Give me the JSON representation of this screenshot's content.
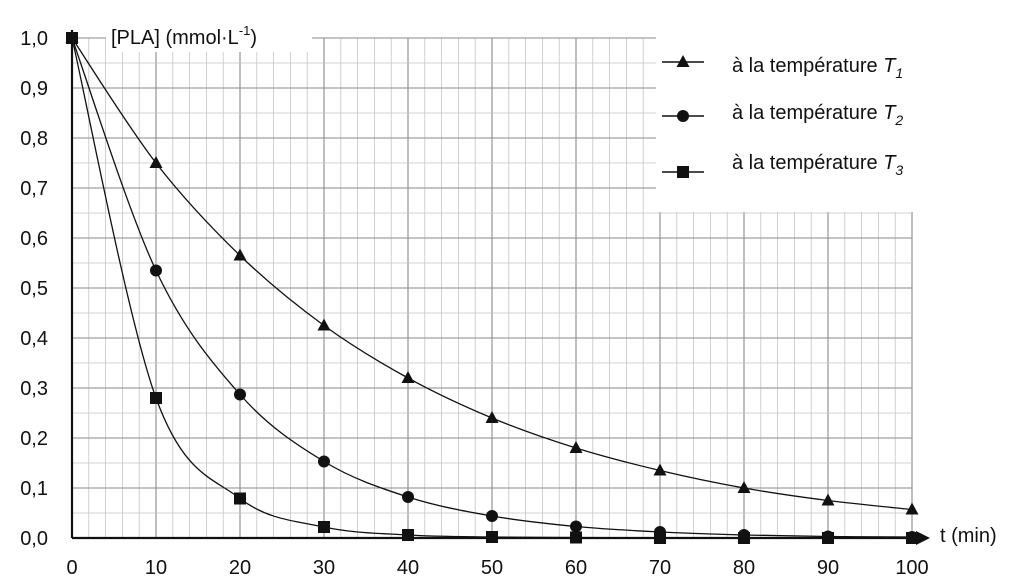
{
  "chart_data": {
    "type": "line",
    "title": "",
    "ylabel": "[PLA] (mmol·L",
    "ylabel_sup": "-1",
    "ylabel_close": ")",
    "xlabel": "t (min)",
    "xlim": [
      0,
      100
    ],
    "ylim": [
      0,
      1.0
    ],
    "grid": true,
    "legend_position": "top-right",
    "x": [
      0,
      10,
      20,
      30,
      40,
      50,
      60,
      70,
      80,
      90,
      100
    ],
    "x_ticks": [
      "0",
      "10",
      "20",
      "30",
      "40",
      "50",
      "60",
      "70",
      "80",
      "90",
      "100"
    ],
    "y_ticks": [
      "0,0",
      "0,1",
      "0,2",
      "0,3",
      "0,4",
      "0,5",
      "0,6",
      "0,7",
      "0,8",
      "0,9",
      "1,0"
    ],
    "series": [
      {
        "name": "à la température T1",
        "legend_text": "à la température ",
        "legend_var": "T",
        "legend_sub": "1",
        "marker": "triangle",
        "values": [
          1.0,
          0.75,
          0.565,
          0.425,
          0.32,
          0.24,
          0.18,
          0.135,
          0.1,
          0.075,
          0.057
        ]
      },
      {
        "name": "à la température T2",
        "legend_text": "à la température ",
        "legend_var": "T",
        "legend_sub": "2",
        "marker": "circle",
        "values": [
          1.0,
          0.535,
          0.287,
          0.153,
          0.082,
          0.044,
          0.023,
          0.012,
          0.006,
          0.003,
          0.002
        ]
      },
      {
        "name": "à la température T3",
        "legend_text": "à la température ",
        "legend_var": "T",
        "legend_sub": "3",
        "marker": "square",
        "values": [
          1.0,
          0.28,
          0.079,
          0.022,
          0.006,
          0.002,
          0.001,
          0.0,
          0.0,
          0.0,
          0.0
        ]
      }
    ]
  }
}
